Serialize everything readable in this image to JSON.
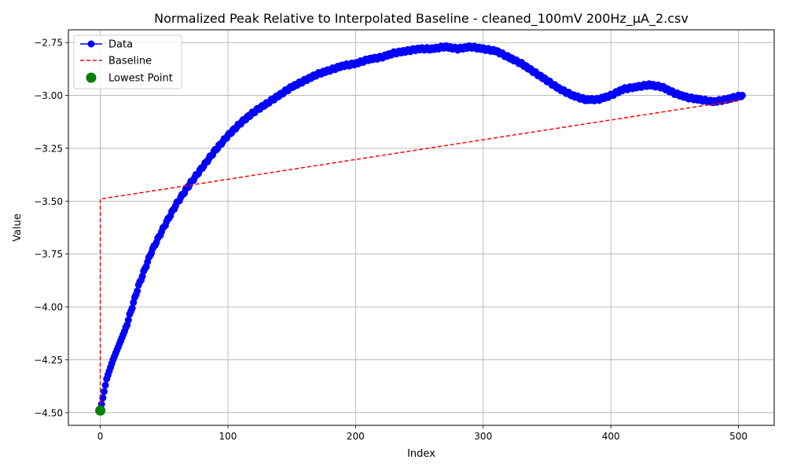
{
  "chart_data": {
    "type": "line",
    "title": "Normalized Peak Relative to Interpolated Baseline - cleaned_100mV 200Hz_µA_2.csv",
    "xlabel": "Index",
    "ylabel": "Value",
    "xlim": [
      -25,
      528
    ],
    "ylim": [
      -4.56,
      -2.69
    ],
    "xticks": [
      0,
      100,
      200,
      300,
      400,
      500
    ],
    "xtick_labels": [
      "0",
      "100",
      "200",
      "300",
      "400",
      "500"
    ],
    "yticks": [
      -4.5,
      -4.25,
      -4.0,
      -3.75,
      -3.5,
      -3.25,
      -3.0,
      -2.75
    ],
    "ytick_labels": [
      "−4.50",
      "−4.25",
      "−4.00",
      "−3.75",
      "−3.50",
      "−3.25",
      "−3.00",
      "−2.75"
    ],
    "grid": true,
    "legend_position": "top-left",
    "legend": [
      "Data",
      "Baseline",
      "Lowest Point"
    ],
    "series": [
      {
        "name": "Data",
        "color": "#0000ff",
        "style": "line-with-circle-markers",
        "x": [
          0,
          5,
          10,
          20,
          30,
          40,
          50,
          60,
          70,
          80,
          90,
          100,
          110,
          120,
          130,
          140,
          150,
          160,
          170,
          180,
          190,
          200,
          210,
          220,
          230,
          240,
          250,
          260,
          270,
          280,
          290,
          300,
          310,
          320,
          330,
          340,
          350,
          360,
          370,
          380,
          390,
          400,
          410,
          420,
          430,
          440,
          450,
          460,
          470,
          480,
          490,
          503
        ],
        "y": [
          -4.49,
          -4.34,
          -4.25,
          -4.1,
          -3.9,
          -3.74,
          -3.62,
          -3.51,
          -3.42,
          -3.34,
          -3.26,
          -3.19,
          -3.13,
          -3.08,
          -3.04,
          -3.0,
          -2.96,
          -2.93,
          -2.9,
          -2.88,
          -2.86,
          -2.85,
          -2.83,
          -2.82,
          -2.8,
          -2.79,
          -2.78,
          -2.78,
          -2.77,
          -2.78,
          -2.77,
          -2.78,
          -2.79,
          -2.82,
          -2.85,
          -2.89,
          -2.93,
          -2.97,
          -3.0,
          -3.02,
          -3.02,
          -3.0,
          -2.97,
          -2.96,
          -2.95,
          -2.96,
          -2.99,
          -3.01,
          -3.02,
          -3.03,
          -3.02,
          -3.0
        ]
      },
      {
        "name": "Baseline",
        "color": "#ff0000",
        "style": "dashed",
        "x": [
          0,
          0,
          503
        ],
        "y": [
          -4.49,
          -3.49,
          -3.02
        ]
      },
      {
        "name": "Lowest Point",
        "color": "#008000",
        "style": "marker",
        "x": [
          0
        ],
        "y": [
          -4.49
        ]
      }
    ]
  }
}
